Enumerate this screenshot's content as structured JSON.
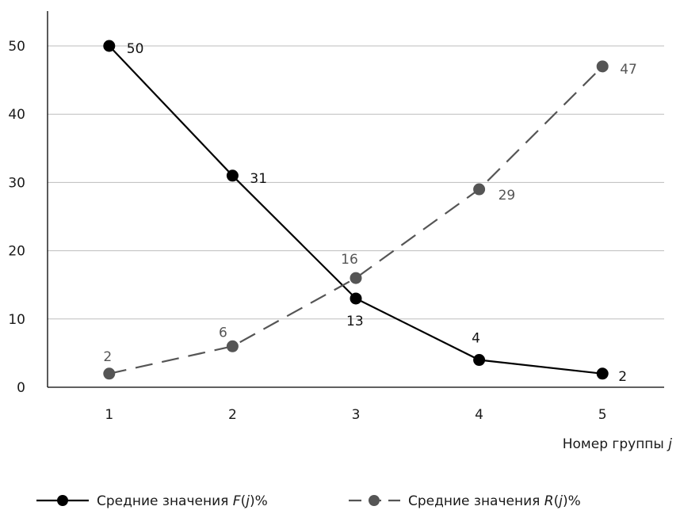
{
  "chart_data": {
    "type": "line",
    "x": [
      1,
      2,
      3,
      4,
      5
    ],
    "xlabel_prefix": "Номер группы",
    "xlabel_var": "j",
    "ylim": [
      0,
      50
    ],
    "yticks": [
      0,
      10,
      20,
      30,
      40,
      50
    ],
    "grid": true,
    "legend_position": "bottom",
    "series": [
      {
        "legend_prefix": "Средние значения",
        "legend_var": "F",
        "legend_arg": "j",
        "legend_suffix": "%",
        "values": [
          50,
          31,
          13,
          4,
          2
        ],
        "labels": [
          "50",
          "31",
          "13",
          "4",
          "2"
        ],
        "color": "#000000",
        "dashed": false
      },
      {
        "legend_prefix": "Средние значения",
        "legend_var": "R",
        "legend_arg": "j",
        "legend_suffix": "%",
        "values": [
          2,
          6,
          16,
          29,
          47
        ],
        "labels": [
          "2",
          "6",
          "16",
          "29",
          "47"
        ],
        "color": "#555555",
        "dashed": true
      }
    ]
  }
}
